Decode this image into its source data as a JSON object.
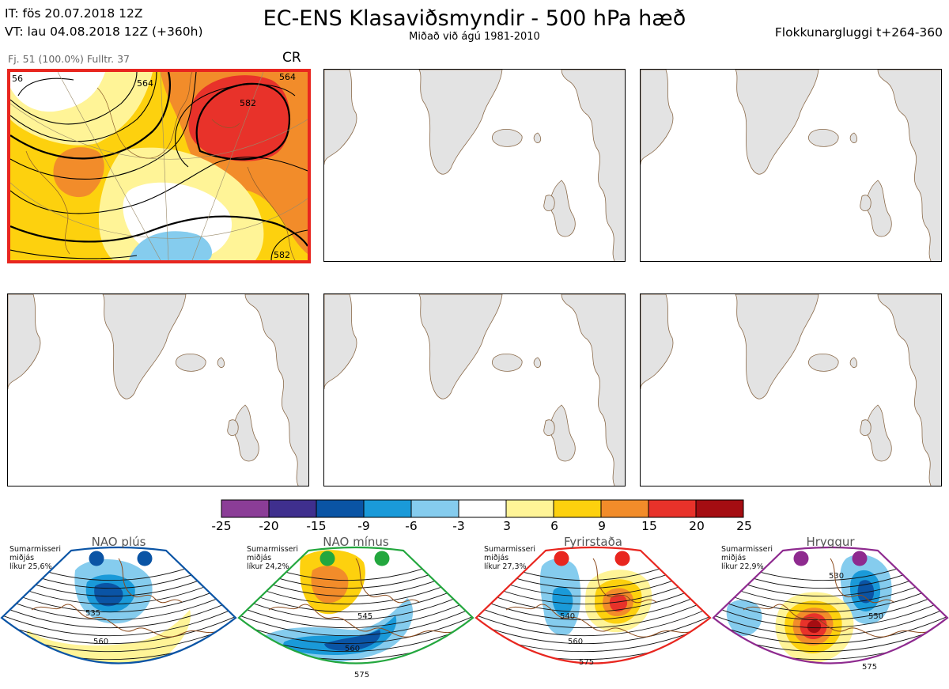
{
  "header": {
    "init_time": "IT: fös 20.07.2018 12Z",
    "valid_time": "VT: lau 04.08.2018 12Z  (+360h)",
    "title": "EC-ENS Klasaviðsmyndir - 500 hPa hæð",
    "subtitle": "Miðað við ágú 1981-2010",
    "window": "Flokkunargluggi t+264-360"
  },
  "main_panel": {
    "info": "Fj. 51 (100.0%)   Fulltr. 37",
    "tag": "CR",
    "contour_labels": [
      "56",
      "564",
      "582",
      "564",
      "582"
    ],
    "highlight_color": "#e8261f"
  },
  "colorbar": {
    "ticks": [
      "-25",
      "-20",
      "-15",
      "-9",
      "-6",
      "-3",
      "3",
      "6",
      "9",
      "15",
      "20",
      "25"
    ],
    "colors": [
      "#8b3d97",
      "#3f2f8e",
      "#0a54a5",
      "#1a9ad9",
      "#85ccee",
      "#ffffff",
      "#fff497",
      "#fdd10e",
      "#f28c2a",
      "#e8322a",
      "#a50d12"
    ]
  },
  "regimes": [
    {
      "name": "NAO plús",
      "season": "Sumarmisseri\nmiðjás\nlíkur 25,6%",
      "color": "#0a54a5",
      "contour_labels": [
        "535",
        "560"
      ]
    },
    {
      "name": "NAO mínus",
      "season": "Sumarmisseri\nmiðjás\nlíkur 24,2%",
      "color": "#23a73e",
      "contour_labels": [
        "545",
        "560",
        "575"
      ]
    },
    {
      "name": "Fyrirstaða",
      "season": "Sumarmisseri\nmiðjás\nlíkur 27,3%",
      "color": "#e8261f",
      "contour_labels": [
        "540",
        "560",
        "575"
      ]
    },
    {
      "name": "Hryggur",
      "season": "Sumarmisseri\nmiðjás\nlíkur 22,9%",
      "color": "#8e2a8f",
      "contour_labels": [
        "530",
        "550",
        "575"
      ]
    }
  ]
}
